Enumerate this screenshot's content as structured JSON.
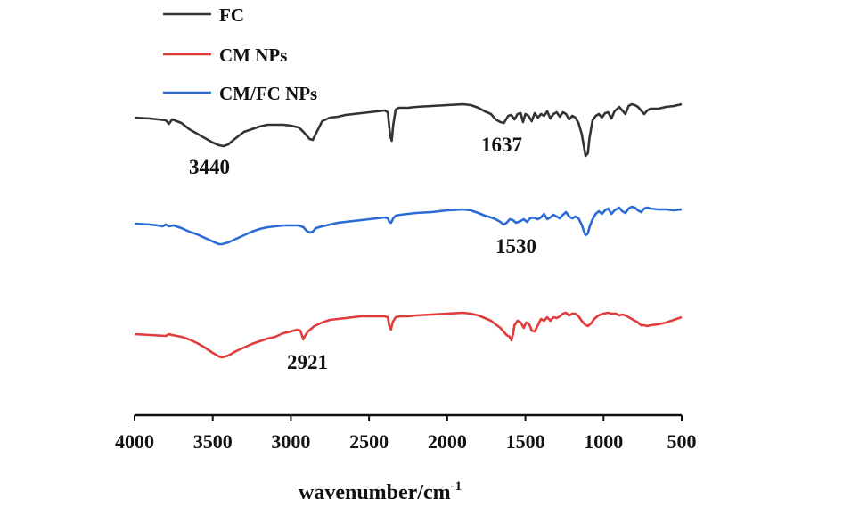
{
  "chart_data": {
    "type": "line",
    "xlabel": "wavenumber/cm",
    "xlabel_superscript": "-1",
    "xlim": [
      4000,
      500
    ],
    "x_ticks": [
      4000,
      3500,
      3000,
      2500,
      2000,
      1500,
      1000,
      500
    ],
    "tick_labels": [
      "4000",
      "3500",
      "3000",
      "2500",
      "2000",
      "1500",
      "1000",
      "500"
    ],
    "y_axis_shown": false,
    "grid": false,
    "legend_position": "top-left",
    "series": [
      {
        "name": "FC",
        "color": "#333333",
        "points": [
          [
            4000,
            132
          ],
          [
            3900,
            133
          ],
          [
            3800,
            135
          ],
          [
            3780,
            139
          ],
          [
            3760,
            134
          ],
          [
            3700,
            138
          ],
          [
            3650,
            145
          ],
          [
            3600,
            150
          ],
          [
            3550,
            155
          ],
          [
            3500,
            160
          ],
          [
            3460,
            163
          ],
          [
            3430,
            164
          ],
          [
            3400,
            162
          ],
          [
            3360,
            156
          ],
          [
            3300,
            148
          ],
          [
            3250,
            145
          ],
          [
            3200,
            142
          ],
          [
            3150,
            140
          ],
          [
            3100,
            140
          ],
          [
            3050,
            140
          ],
          [
            3000,
            141
          ],
          [
            2950,
            143
          ],
          [
            2920,
            148
          ],
          [
            2900,
            152
          ],
          [
            2880,
            156
          ],
          [
            2860,
            157
          ],
          [
            2840,
            150
          ],
          [
            2800,
            136
          ],
          [
            2750,
            132
          ],
          [
            2700,
            131
          ],
          [
            2650,
            129
          ],
          [
            2600,
            128
          ],
          [
            2550,
            127
          ],
          [
            2500,
            126
          ],
          [
            2450,
            125
          ],
          [
            2400,
            124
          ],
          [
            2380,
            126
          ],
          [
            2365,
            152
          ],
          [
            2355,
            158
          ],
          [
            2345,
            140
          ],
          [
            2330,
            123
          ],
          [
            2310,
            121
          ],
          [
            2250,
            121
          ],
          [
            2200,
            120
          ],
          [
            2100,
            119
          ],
          [
            2000,
            118
          ],
          [
            1900,
            117
          ],
          [
            1850,
            118
          ],
          [
            1800,
            121
          ],
          [
            1760,
            125
          ],
          [
            1720,
            128
          ],
          [
            1690,
            134
          ],
          [
            1660,
            137
          ],
          [
            1637,
            138
          ],
          [
            1610,
            130
          ],
          [
            1590,
            129
          ],
          [
            1570,
            134
          ],
          [
            1550,
            128
          ],
          [
            1530,
            127
          ],
          [
            1515,
            137
          ],
          [
            1500,
            128
          ],
          [
            1480,
            130
          ],
          [
            1460,
            136
          ],
          [
            1440,
            127
          ],
          [
            1420,
            132
          ],
          [
            1400,
            128
          ],
          [
            1380,
            130
          ],
          [
            1360,
            125
          ],
          [
            1340,
            133
          ],
          [
            1320,
            128
          ],
          [
            1300,
            126
          ],
          [
            1280,
            131
          ],
          [
            1260,
            126
          ],
          [
            1240,
            128
          ],
          [
            1220,
            134
          ],
          [
            1200,
            130
          ],
          [
            1180,
            132
          ],
          [
            1160,
            138
          ],
          [
            1140,
            150
          ],
          [
            1125,
            165
          ],
          [
            1115,
            175
          ],
          [
            1100,
            172
          ],
          [
            1090,
            155
          ],
          [
            1070,
            135
          ],
          [
            1050,
            130
          ],
          [
            1030,
            128
          ],
          [
            1010,
            132
          ],
          [
            990,
            127
          ],
          [
            970,
            126
          ],
          [
            950,
            133
          ],
          [
            930,
            125
          ],
          [
            900,
            120
          ],
          [
            880,
            124
          ],
          [
            860,
            128
          ],
          [
            840,
            119
          ],
          [
            820,
            117
          ],
          [
            800,
            118
          ],
          [
            780,
            120
          ],
          [
            760,
            124
          ],
          [
            740,
            128
          ],
          [
            720,
            124
          ],
          [
            700,
            122
          ],
          [
            650,
            122
          ],
          [
            600,
            120
          ],
          [
            550,
            119
          ],
          [
            500,
            117
          ]
        ]
      },
      {
        "name": "CM NPs",
        "color": "#e03c3c",
        "points": [
          [
            4000,
            375
          ],
          [
            3900,
            376
          ],
          [
            3800,
            377
          ],
          [
            3780,
            375
          ],
          [
            3760,
            376
          ],
          [
            3700,
            378
          ],
          [
            3650,
            381
          ],
          [
            3600,
            385
          ],
          [
            3550,
            390
          ],
          [
            3500,
            396
          ],
          [
            3460,
            400
          ],
          [
            3440,
            401
          ],
          [
            3400,
            399
          ],
          [
            3350,
            394
          ],
          [
            3300,
            390
          ],
          [
            3250,
            386
          ],
          [
            3200,
            383
          ],
          [
            3150,
            380
          ],
          [
            3100,
            378
          ],
          [
            3050,
            374
          ],
          [
            3000,
            372
          ],
          [
            2960,
            370
          ],
          [
            2940,
            371
          ],
          [
            2930,
            376
          ],
          [
            2921,
            381
          ],
          [
            2910,
            377
          ],
          [
            2890,
            372
          ],
          [
            2850,
            366
          ],
          [
            2800,
            362
          ],
          [
            2750,
            359
          ],
          [
            2700,
            358
          ],
          [
            2650,
            357
          ],
          [
            2600,
            356
          ],
          [
            2550,
            355
          ],
          [
            2500,
            355
          ],
          [
            2450,
            355
          ],
          [
            2400,
            355
          ],
          [
            2380,
            356
          ],
          [
            2370,
            366
          ],
          [
            2360,
            370
          ],
          [
            2350,
            362
          ],
          [
            2330,
            356
          ],
          [
            2300,
            355
          ],
          [
            2250,
            355
          ],
          [
            2200,
            354
          ],
          [
            2100,
            353
          ],
          [
            2000,
            352
          ],
          [
            1900,
            351
          ],
          [
            1850,
            352
          ],
          [
            1800,
            354
          ],
          [
            1760,
            357
          ],
          [
            1720,
            360
          ],
          [
            1690,
            364
          ],
          [
            1660,
            368
          ],
          [
            1640,
            372
          ],
          [
            1620,
            376
          ],
          [
            1600,
            378
          ],
          [
            1590,
            382
          ],
          [
            1580,
            376
          ],
          [
            1570,
            365
          ],
          [
            1550,
            360
          ],
          [
            1530,
            362
          ],
          [
            1510,
            368
          ],
          [
            1495,
            362
          ],
          [
            1480,
            363
          ],
          [
            1470,
            366
          ],
          [
            1460,
            371
          ],
          [
            1440,
            372
          ],
          [
            1420,
            365
          ],
          [
            1400,
            358
          ],
          [
            1380,
            360
          ],
          [
            1360,
            356
          ],
          [
            1340,
            360
          ],
          [
            1320,
            356
          ],
          [
            1300,
            357
          ],
          [
            1280,
            355
          ],
          [
            1260,
            352
          ],
          [
            1240,
            351
          ],
          [
            1220,
            354
          ],
          [
            1200,
            352
          ],
          [
            1180,
            352
          ],
          [
            1160,
            355
          ],
          [
            1140,
            360
          ],
          [
            1120,
            364
          ],
          [
            1100,
            366
          ],
          [
            1080,
            363
          ],
          [
            1060,
            358
          ],
          [
            1040,
            355
          ],
          [
            1020,
            353
          ],
          [
            1000,
            352
          ],
          [
            970,
            351
          ],
          [
            950,
            352
          ],
          [
            920,
            352
          ],
          [
            900,
            354
          ],
          [
            880,
            353
          ],
          [
            860,
            354
          ],
          [
            840,
            356
          ],
          [
            820,
            358
          ],
          [
            800,
            360
          ],
          [
            780,
            362
          ],
          [
            760,
            365
          ],
          [
            740,
            365
          ],
          [
            720,
            366
          ],
          [
            700,
            365
          ],
          [
            650,
            364
          ],
          [
            600,
            362
          ],
          [
            550,
            359
          ],
          [
            500,
            356
          ]
        ]
      },
      {
        "name": "CM/FC NPs",
        "color": "#2a6bd6",
        "points": [
          [
            4000,
            251
          ],
          [
            3900,
            252
          ],
          [
            3850,
            253
          ],
          [
            3820,
            254
          ],
          [
            3800,
            252
          ],
          [
            3780,
            254
          ],
          [
            3750,
            253
          ],
          [
            3700,
            256
          ],
          [
            3650,
            260
          ],
          [
            3600,
            263
          ],
          [
            3550,
            267
          ],
          [
            3500,
            271
          ],
          [
            3460,
            274
          ],
          [
            3440,
            274
          ],
          [
            3400,
            272
          ],
          [
            3350,
            268
          ],
          [
            3300,
            264
          ],
          [
            3250,
            260
          ],
          [
            3200,
            257
          ],
          [
            3150,
            255
          ],
          [
            3100,
            254
          ],
          [
            3050,
            253
          ],
          [
            3000,
            253
          ],
          [
            2950,
            253
          ],
          [
            2920,
            255
          ],
          [
            2900,
            259
          ],
          [
            2880,
            261
          ],
          [
            2860,
            260
          ],
          [
            2840,
            256
          ],
          [
            2800,
            254
          ],
          [
            2750,
            252
          ],
          [
            2700,
            250
          ],
          [
            2650,
            249
          ],
          [
            2600,
            248
          ],
          [
            2550,
            247
          ],
          [
            2500,
            246
          ],
          [
            2450,
            245
          ],
          [
            2400,
            244
          ],
          [
            2380,
            245
          ],
          [
            2370,
            249
          ],
          [
            2360,
            250
          ],
          [
            2345,
            245
          ],
          [
            2330,
            242
          ],
          [
            2300,
            241
          ],
          [
            2250,
            240
          ],
          [
            2200,
            239
          ],
          [
            2100,
            238
          ],
          [
            2000,
            236
          ],
          [
            1900,
            235
          ],
          [
            1850,
            236
          ],
          [
            1800,
            239
          ],
          [
            1760,
            242
          ],
          [
            1720,
            244
          ],
          [
            1690,
            246
          ],
          [
            1660,
            249
          ],
          [
            1640,
            252
          ],
          [
            1620,
            250
          ],
          [
            1600,
            246
          ],
          [
            1580,
            247
          ],
          [
            1560,
            250
          ],
          [
            1530,
            248
          ],
          [
            1510,
            246
          ],
          [
            1490,
            249
          ],
          [
            1470,
            245
          ],
          [
            1450,
            244
          ],
          [
            1420,
            246
          ],
          [
            1400,
            244
          ],
          [
            1380,
            240
          ],
          [
            1360,
            246
          ],
          [
            1340,
            244
          ],
          [
            1320,
            241
          ],
          [
            1300,
            243
          ],
          [
            1280,
            245
          ],
          [
            1260,
            241
          ],
          [
            1240,
            238
          ],
          [
            1220,
            243
          ],
          [
            1200,
            245
          ],
          [
            1180,
            243
          ],
          [
            1160,
            245
          ],
          [
            1140,
            252
          ],
          [
            1125,
            260
          ],
          [
            1115,
            264
          ],
          [
            1100,
            262
          ],
          [
            1090,
            255
          ],
          [
            1070,
            246
          ],
          [
            1050,
            240
          ],
          [
            1030,
            237
          ],
          [
            1010,
            240
          ],
          [
            990,
            236
          ],
          [
            970,
            234
          ],
          [
            950,
            240
          ],
          [
            930,
            236
          ],
          [
            900,
            233
          ],
          [
            880,
            237
          ],
          [
            860,
            239
          ],
          [
            840,
            234
          ],
          [
            820,
            232
          ],
          [
            800,
            233
          ],
          [
            780,
            236
          ],
          [
            760,
            238
          ],
          [
            740,
            234
          ],
          [
            720,
            233
          ],
          [
            700,
            234
          ],
          [
            650,
            235
          ],
          [
            600,
            235
          ],
          [
            550,
            236
          ],
          [
            500,
            235
          ]
        ]
      }
    ],
    "annotations": [
      {
        "text": "3440",
        "series": "FC"
      },
      {
        "text": "1637",
        "series": "FC"
      },
      {
        "text": "1530",
        "series": "CM/FC NPs"
      },
      {
        "text": "2921",
        "series": "CM NPs"
      }
    ]
  }
}
